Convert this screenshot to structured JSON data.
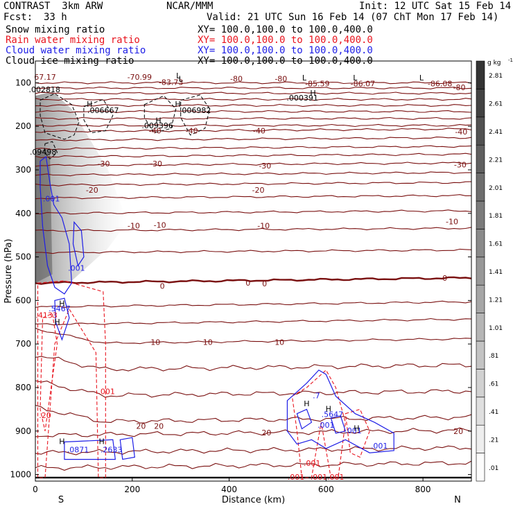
{
  "header": {
    "title": "CONTRAST  3km ARW",
    "center": "NCAR/MMM",
    "init": "Init: 12 UTC Sat 15 Feb 14",
    "fcst_label": "Fcst:",
    "fcst_value": "33 h",
    "valid": "Valid: 21 UTC Sun 16 Feb 14 (07 ChT Mon 17 Feb 14)",
    "fields": [
      {
        "name": "Snow mixing ratio",
        "xy": "XY= 100.0,100.0 to 100.0,400.0",
        "color": "#000000"
      },
      {
        "name": "Rain water mixing ratio",
        "xy": "XY= 100.0,100.0 to 100.0,400.0",
        "color": "#e8141e"
      },
      {
        "name": "Cloud water mixing ratio",
        "xy": "XY= 100.0,100.0 to 100.0,400.0",
        "color": "#1e1ee6"
      },
      {
        "name": "Cloud ice mixing ratio",
        "xy": "XY= 100.0,100.0 to 100.0,400.0",
        "color": "#000000"
      }
    ]
  },
  "colors": {
    "temperature": "#7a1010",
    "rain": "#e8141e",
    "cloud_water": "#1e1ee6",
    "ice": "#000000",
    "frame": "#000000"
  },
  "chart_data": {
    "type": "cross-section",
    "xlabel": "Distance (km)",
    "ylabel": "Pressure (hPa)",
    "xlim": [
      0,
      900
    ],
    "ylim": [
      1015,
      50
    ],
    "xticks": [
      0,
      200,
      400,
      600,
      800
    ],
    "yticks": [
      100,
      200,
      300,
      400,
      500,
      600,
      700,
      800,
      900,
      1000
    ],
    "endpoints": {
      "left": "S",
      "right": "N"
    },
    "colorbar": {
      "unit": "g kg",
      "unit_exp": "-1",
      "levels": [
        ".01",
        ".21",
        ".41",
        ".61",
        ".81",
        "1.01",
        "1.21",
        "1.41",
        "1.61",
        "1.81",
        "2.01",
        "2.21",
        "2.41",
        "2.61",
        "2.81"
      ]
    },
    "temperature_labels": [
      {
        "x": 20,
        "p": 88,
        "text": "67.17"
      },
      {
        "x": 215,
        "p": 88,
        "text": "-70.99"
      },
      {
        "x": 280,
        "p": 100,
        "text": "-83.73"
      },
      {
        "x": 415,
        "p": 92,
        "text": "-80"
      },
      {
        "x": 507,
        "p": 92,
        "text": "-80"
      },
      {
        "x": 582,
        "p": 103,
        "text": "-85.59"
      },
      {
        "x": 676,
        "p": 103,
        "text": "-86.07"
      },
      {
        "x": 835,
        "p": 103,
        "text": "-86.08"
      },
      {
        "x": 875,
        "p": 112,
        "text": "-80"
      },
      {
        "x": 247,
        "p": 212,
        "text": "-40"
      },
      {
        "x": 323,
        "p": 212,
        "text": "-40"
      },
      {
        "x": 462,
        "p": 212,
        "text": "-40"
      },
      {
        "x": 879,
        "p": 214,
        "text": "-40"
      },
      {
        "x": 141,
        "p": 287,
        "text": "-30"
      },
      {
        "x": 249,
        "p": 287,
        "text": "-30"
      },
      {
        "x": 474,
        "p": 292,
        "text": "-30"
      },
      {
        "x": 877,
        "p": 290,
        "text": "-30"
      },
      {
        "x": 117,
        "p": 348,
        "text": "-20"
      },
      {
        "x": 460,
        "p": 348,
        "text": "-20"
      },
      {
        "x": 203,
        "p": 430,
        "text": "-10"
      },
      {
        "x": 257,
        "p": 428,
        "text": "-10"
      },
      {
        "x": 471,
        "p": 430,
        "text": "-10"
      },
      {
        "x": 860,
        "p": 420,
        "text": "-10"
      },
      {
        "x": 262,
        "p": 568,
        "text": "0"
      },
      {
        "x": 439,
        "p": 561,
        "text": "0"
      },
      {
        "x": 473,
        "p": 563,
        "text": "0"
      },
      {
        "x": 845,
        "p": 550,
        "text": "0"
      },
      {
        "x": 248,
        "p": 697,
        "text": "10"
      },
      {
        "x": 356,
        "p": 697,
        "text": "10"
      },
      {
        "x": 504,
        "p": 697,
        "text": "10"
      },
      {
        "x": 218,
        "p": 890,
        "text": "20"
      },
      {
        "x": 255,
        "p": 890,
        "text": "20"
      },
      {
        "x": 477,
        "p": 905,
        "text": "20"
      },
      {
        "x": 873,
        "p": 902,
        "text": "20"
      }
    ],
    "rain_labels": [
      {
        "x": 23,
        "p": 635,
        "text": ".4133"
      },
      {
        "x": 147,
        "p": 810,
        "text": ".001"
      },
      {
        "x": 20,
        "p": 865,
        "text": ".20"
      },
      {
        "x": 538,
        "p": 1007,
        "text": ".001"
      },
      {
        "x": 571,
        "p": 975,
        "text": ".001"
      },
      {
        "x": 585,
        "p": 1007,
        "text": ".001"
      },
      {
        "x": 620,
        "p": 1007,
        "text": ".001"
      }
    ],
    "cloud_water_labels": [
      {
        "x": 33,
        "p": 368,
        "text": ".001"
      },
      {
        "x": 85,
        "p": 527,
        "text": ".001"
      },
      {
        "x": 50,
        "p": 620,
        "text": ".5467"
      },
      {
        "x": 88,
        "p": 944,
        "text": ".0871"
      },
      {
        "x": 157,
        "p": 944,
        "text": ".2633"
      },
      {
        "x": 580,
        "p": 820,
        "text": ".7"
      },
      {
        "x": 600,
        "p": 888,
        "text": ".001"
      },
      {
        "x": 613,
        "p": 863,
        "text": ".5647"
      },
      {
        "x": 656,
        "p": 900,
        "text": ".001"
      },
      {
        "x": 710,
        "p": 935,
        "text": ".001"
      }
    ],
    "ice_labels": [
      {
        "x": 19,
        "p": 117,
        "text": ".002818"
      },
      {
        "x": 140,
        "p": 165,
        "text": ".006667"
      },
      {
        "x": 330,
        "p": 165,
        "text": ".006982"
      },
      {
        "x": 551,
        "p": 136,
        "text": ".000391"
      },
      {
        "x": 252,
        "p": 200,
        "text": ".009396"
      },
      {
        "x": 16,
        "p": 260,
        "text": ".09498"
      }
    ],
    "highs_lows": [
      {
        "x": 295,
        "p": 85,
        "text": "L"
      },
      {
        "x": 300,
        "p": 92,
        "text": "L"
      },
      {
        "x": 555,
        "p": 90,
        "text": "L"
      },
      {
        "x": 660,
        "p": 90,
        "text": "L"
      },
      {
        "x": 797,
        "p": 90,
        "text": "L"
      },
      {
        "x": 573,
        "p": 125,
        "text": "H"
      },
      {
        "x": 112,
        "p": 150,
        "text": "H"
      },
      {
        "x": 294,
        "p": 150,
        "text": "H"
      },
      {
        "x": 254,
        "p": 188,
        "text": "H"
      },
      {
        "x": 55,
        "p": 608,
        "text": "H"
      },
      {
        "x": 45,
        "p": 650,
        "text": "H"
      },
      {
        "x": 55,
        "p": 925,
        "text": "H"
      },
      {
        "x": 137,
        "p": 925,
        "text": "H"
      },
      {
        "x": 560,
        "p": 838,
        "text": "H"
      },
      {
        "x": 605,
        "p": 850,
        "text": "H"
      },
      {
        "x": 663,
        "p": 895,
        "text": "H"
      }
    ]
  }
}
